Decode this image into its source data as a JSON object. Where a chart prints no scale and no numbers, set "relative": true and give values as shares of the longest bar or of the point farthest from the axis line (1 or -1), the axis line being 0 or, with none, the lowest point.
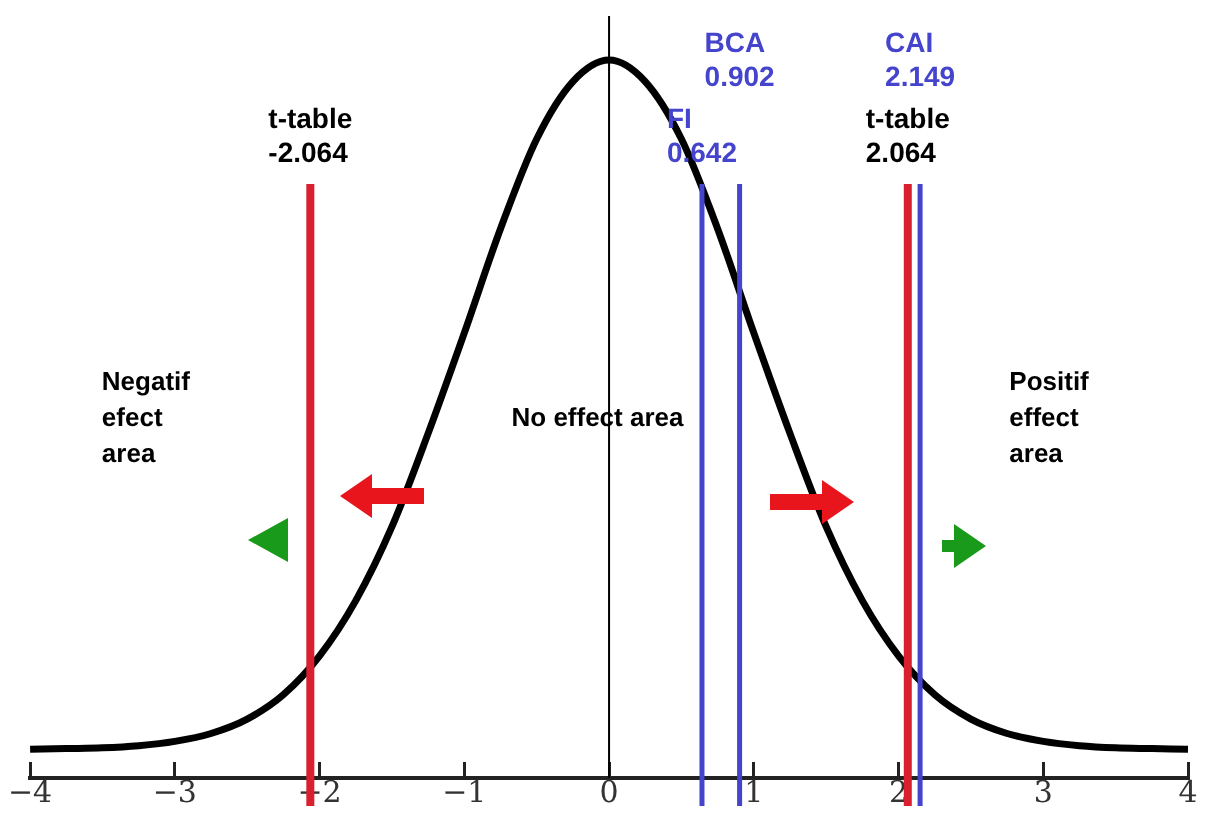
{
  "chart_data": {
    "type": "line",
    "relative": true,
    "color": "#000000",
    "legend": false,
    "grid": false,
    "marker": "none",
    "tick_labels": "x",
    "x": [
      -4,
      -3.75,
      -3.5,
      -3.25,
      -3,
      -2.75,
      -2.5,
      -2.25,
      -2,
      -1.75,
      -1.5,
      -1.25,
      -1,
      -0.75,
      -0.5,
      -0.25,
      0,
      0.25,
      0.5,
      0.75,
      1,
      1.25,
      1.5,
      1.75,
      2,
      2.25,
      2.5,
      2.75,
      3,
      3.25,
      3.5,
      3.75,
      4
    ],
    "values": [
      0.04,
      0.041,
      0.042,
      0.045,
      0.051,
      0.062,
      0.082,
      0.116,
      0.17,
      0.247,
      0.35,
      0.48,
      0.62,
      0.765,
      0.89,
      0.97,
      1,
      0.97,
      0.89,
      0.765,
      0.62,
      0.48,
      0.35,
      0.247,
      0.17,
      0.116,
      0.082,
      0.062,
      0.051,
      0.045,
      0.042,
      0.041,
      0.04
    ],
    "xlim": [
      -4,
      4
    ],
    "xticks": [
      {
        "value": -4,
        "label": "−4"
      },
      {
        "value": -3,
        "label": "−3"
      },
      {
        "value": -2,
        "label": "−2"
      },
      {
        "value": -1,
        "label": "−1"
      },
      0,
      1,
      2,
      3,
      4
    ],
    "ref_lines": [
      {
        "axis": "x",
        "value": 0,
        "color": "#000000"
      },
      {
        "axis": "x",
        "value": -2.064,
        "label": "t-table\n-2.064",
        "color": "#d9202e"
      },
      {
        "axis": "x",
        "value": 0.642,
        "label": "FI\n0.642",
        "color": "#4444cc"
      },
      {
        "axis": "x",
        "value": 0.902,
        "label": "BCA\n0.902",
        "color": "#4444cc"
      },
      {
        "axis": "x",
        "value": 2.064,
        "label": "t-table\n2.064",
        "color": "#d9202e"
      },
      {
        "axis": "x",
        "value": 2.149,
        "label": "CAI\n2.149",
        "color": "#4444cc"
      }
    ],
    "annotations": [
      "Negatif\nefect\narea",
      "No effect area",
      "Positif\neffect\narea"
    ]
  }
}
